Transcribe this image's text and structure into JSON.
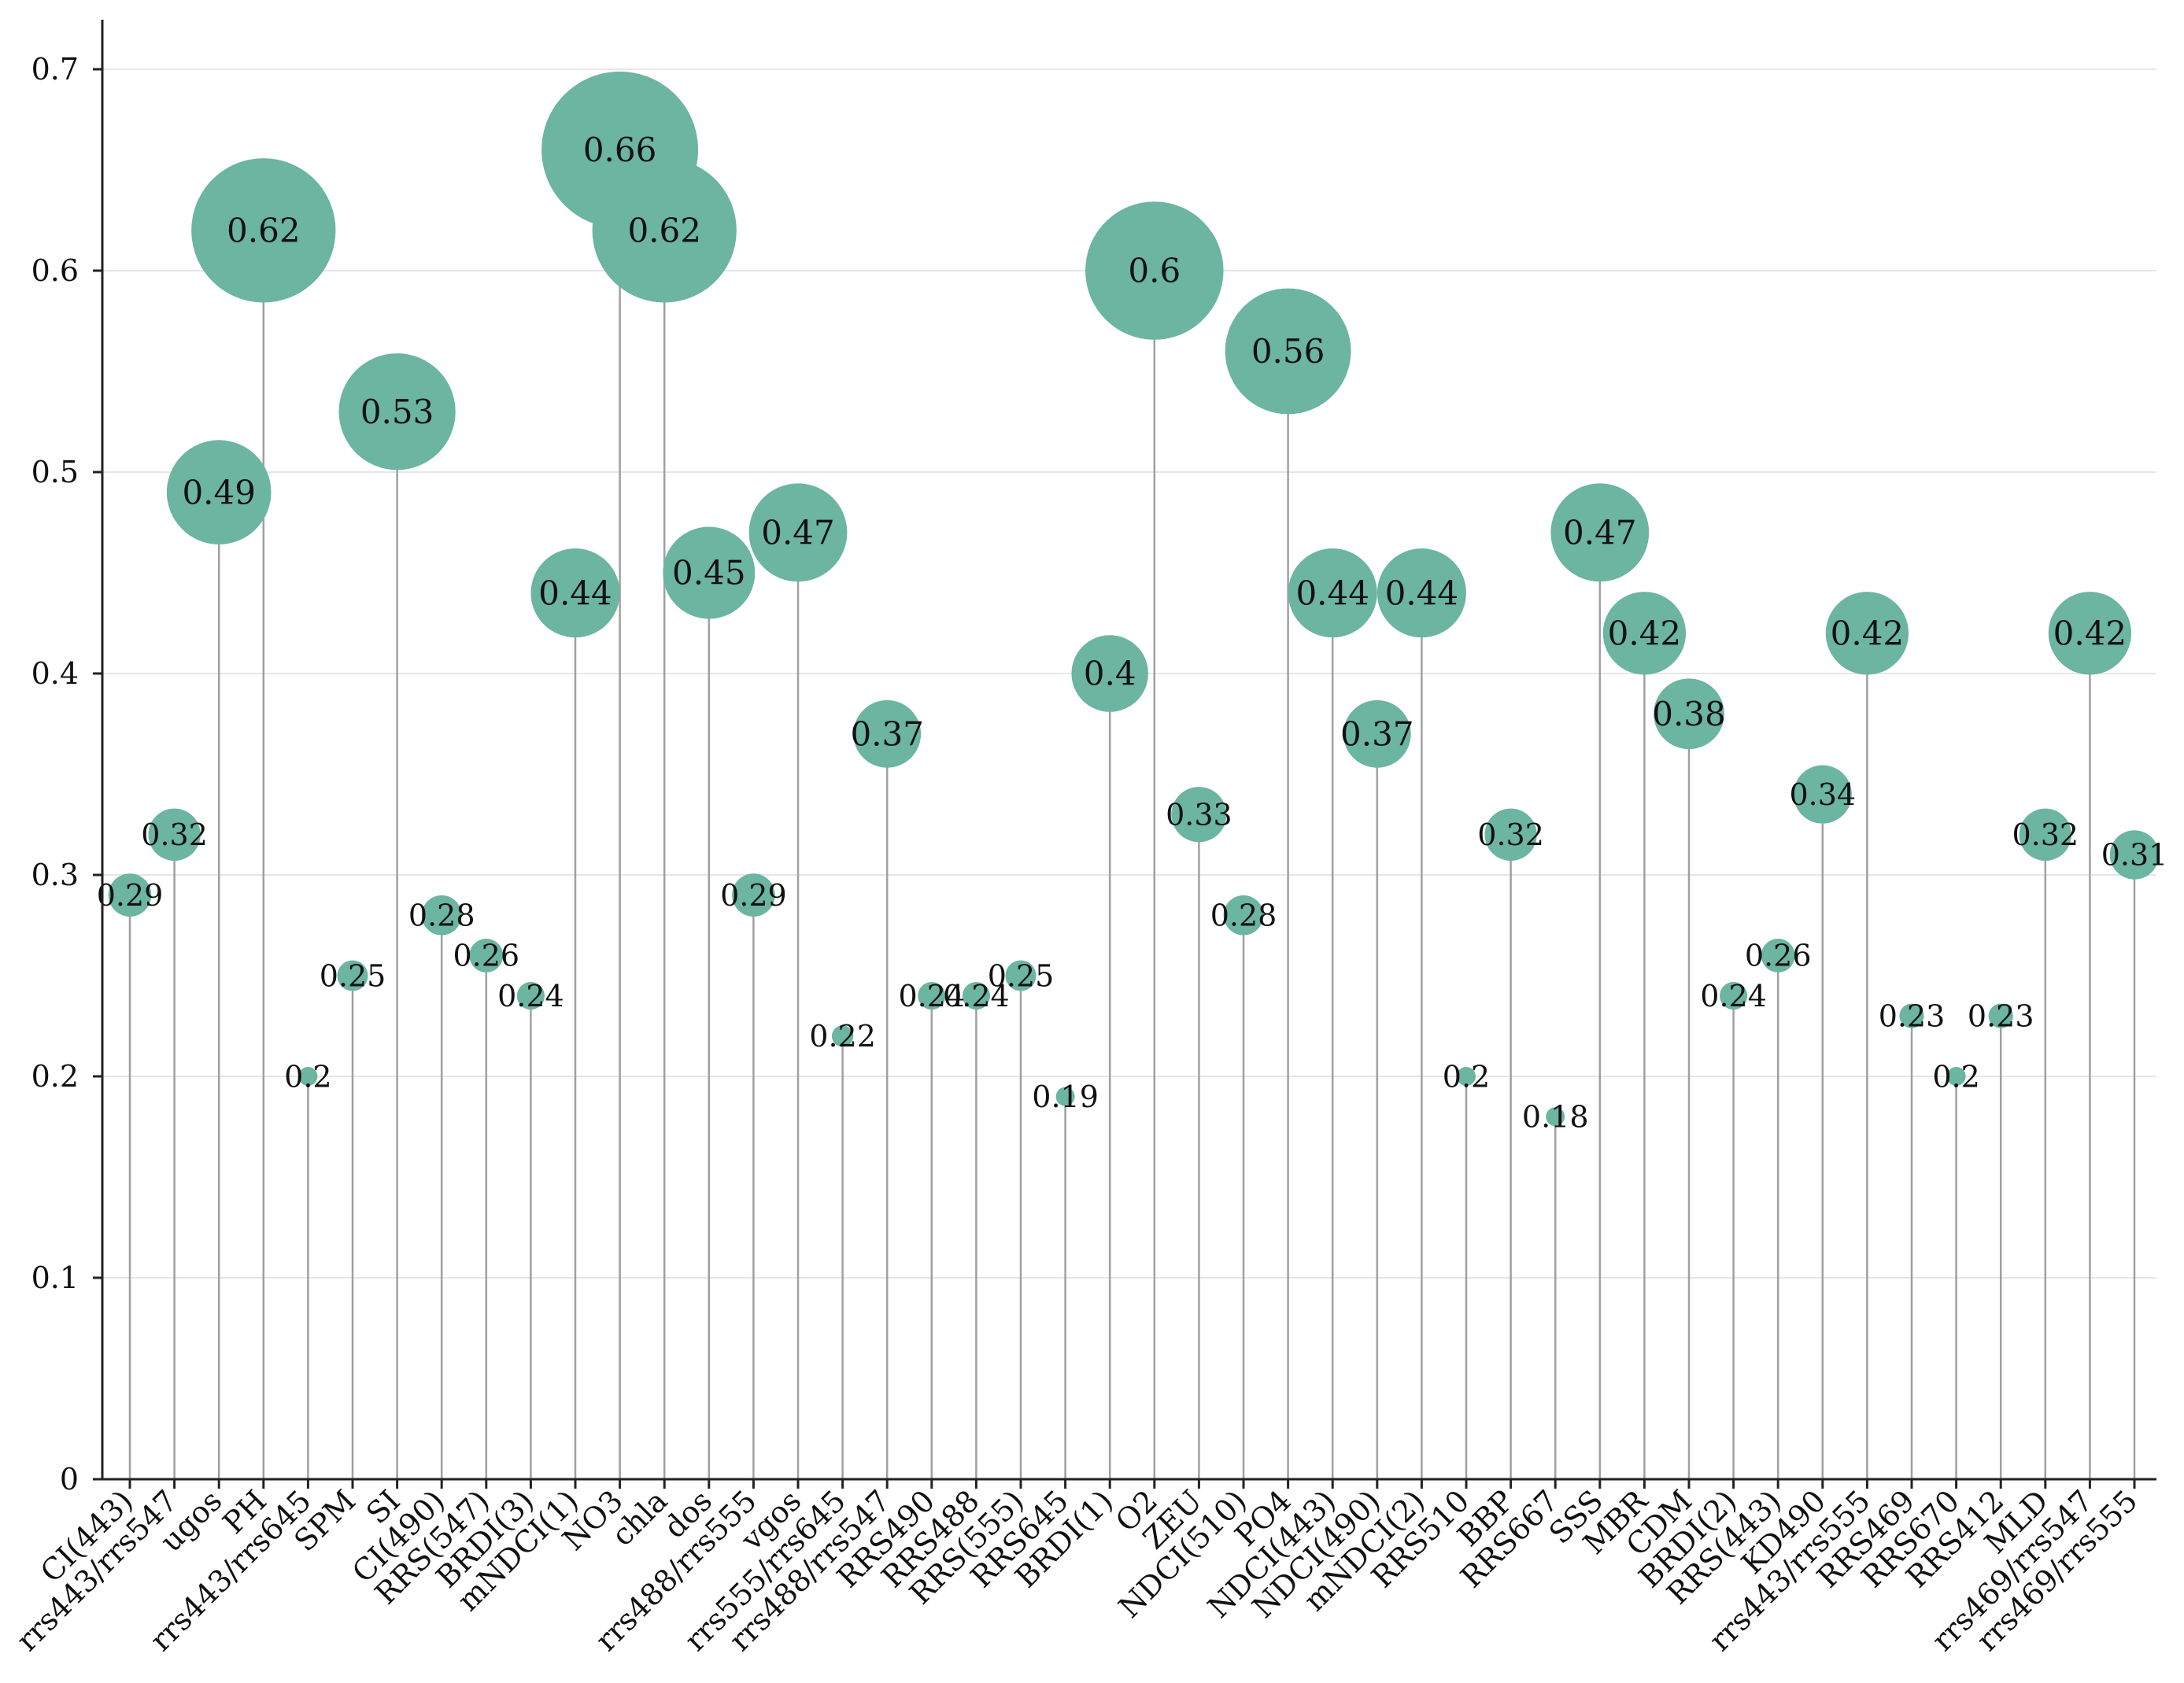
{
  "colors": {
    "bubble": "#6bb5a1",
    "stem": "#a0a0a0",
    "grid": "#e6e6e6",
    "axis": "#222222"
  },
  "chart_data": {
    "type": "scatter",
    "style": "lollipop-bubble",
    "title": "",
    "xlabel": "",
    "ylabel": "",
    "ylim": [
      0,
      0.7
    ],
    "yticks": [
      0,
      0.1,
      0.2,
      0.3,
      0.4,
      0.5,
      0.6,
      0.7
    ],
    "ytick_labels": [
      "0",
      "0.1",
      "0.2",
      "0.3",
      "0.4",
      "0.5",
      "0.6",
      "0.7"
    ],
    "grid": "horizontal",
    "bubble_size_encodes": "value",
    "categories": [
      "CI(443)",
      "rrs443/rrs547",
      "ugos",
      "PH",
      "rrs443/rrs645",
      "SPM",
      "SI",
      "CI(490)",
      "RRS(547)",
      "BRDI(3)",
      "mNDCI(1)",
      "NO3",
      "chla",
      "dos",
      "rrs488/rrs555",
      "vgos",
      "rrs555/rrs645",
      "rrs488/rrs547",
      "RRS490",
      "RRS488",
      "RRS(555)",
      "RRS645",
      "BRDI(1)",
      "O2",
      "ZEU",
      "NDCI(510)",
      "PO4",
      "NDCI(443)",
      "NDCI(490)",
      "mNDCI(2)",
      "RRS510",
      "BBP",
      "RRS667",
      "SSS",
      "MBR",
      "CDM",
      "BRDI(2)",
      "RRS(443)",
      "KD490",
      "rrs443/rrs555",
      "RRS469",
      "RRS670",
      "RRS412",
      "MLD",
      "rrs469/rrs547",
      "rrs469/rrs555"
    ],
    "values": [
      0.29,
      0.32,
      0.49,
      0.62,
      0.2,
      0.25,
      0.53,
      0.28,
      0.26,
      0.24,
      0.44,
      0.66,
      0.62,
      0.45,
      0.29,
      0.47,
      0.22,
      0.37,
      0.24,
      0.24,
      0.25,
      0.19,
      0.4,
      0.6,
      0.33,
      0.28,
      0.56,
      0.44,
      0.37,
      0.44,
      0.2,
      0.32,
      0.18,
      0.47,
      0.42,
      0.38,
      0.24,
      0.26,
      0.34,
      0.42,
      0.23,
      0.2,
      0.23,
      0.32,
      0.42,
      0.31
    ],
    "value_labels": [
      "0.29",
      "0.32",
      "0.49",
      "0.62",
      "0.2",
      "0.25",
      "0.53",
      "0.28",
      "0.26",
      "0.24",
      "0.44",
      "0.66",
      "0.62",
      "0.45",
      "0.29",
      "0.47",
      "0.22",
      "0.37",
      "0.24",
      "0.24",
      "0.25",
      "0.19",
      "0.4",
      "0.6",
      "0.33",
      "0.28",
      "0.56",
      "0.44",
      "0.37",
      "0.44",
      "0.2",
      "0.32",
      "0.18",
      "0.47",
      "0.42",
      "0.38",
      "0.24",
      "0.26",
      "0.34",
      "0.42",
      "0.23",
      "0.2",
      "0.23",
      "0.32",
      "0.42",
      "0.31"
    ]
  }
}
